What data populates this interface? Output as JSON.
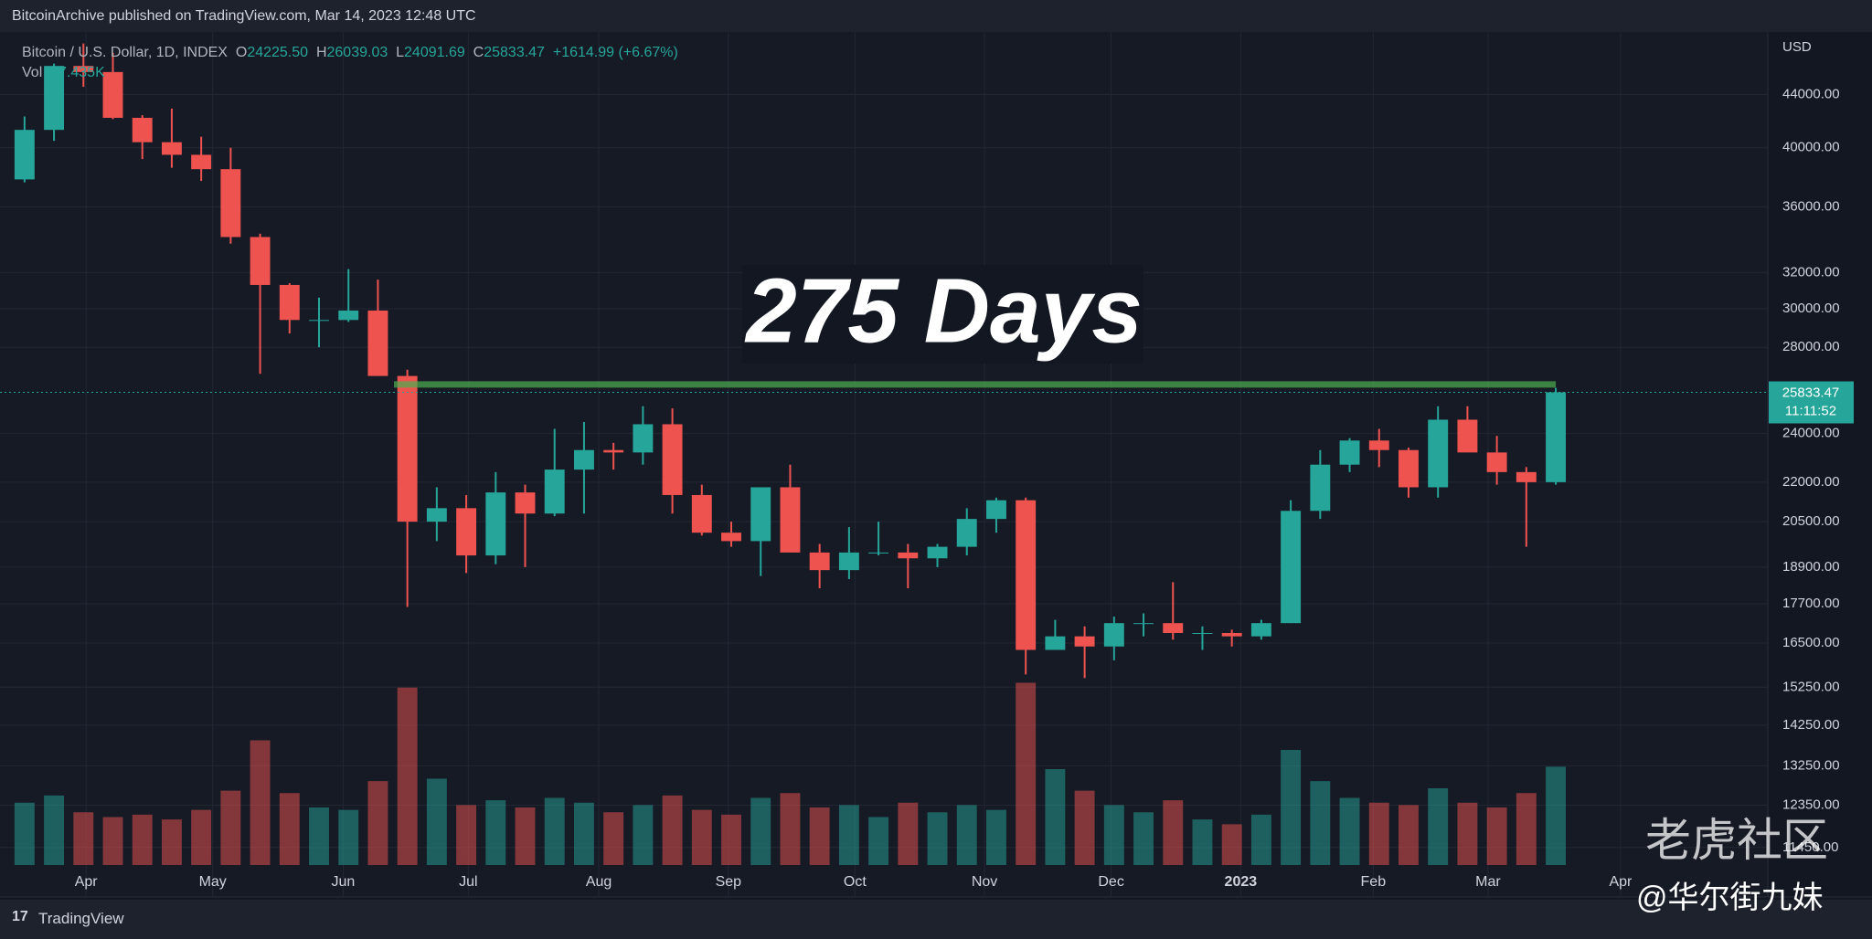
{
  "page": {
    "published": "BitcoinArchive published on TradingView.com, Mar 14, 2023 12:48 UTC",
    "brand": "TradingView",
    "watermark": "老虎社区",
    "credit": "@华尔街九妹"
  },
  "chart_data": {
    "type": "candlestick",
    "symbol": "Bitcoin / U.S. Dollar, 1D, INDEX",
    "ohlc_header": {
      "o_label": "O",
      "o": "24225.50",
      "h_label": "H",
      "h": "26039.03",
      "l_label": "L",
      "l": "24091.69",
      "c_label": "C",
      "c": "25833.47",
      "change": "+1614.99 (+6.67%)"
    },
    "volume_label": "Vol",
    "volume_header": "27.435K",
    "currency": "USD",
    "annotation": "275 Days",
    "level_line": {
      "value": 26200,
      "color": "#4caf50"
    },
    "last_price": {
      "value": 25833.47,
      "label": "25833.47",
      "countdown": "11:11:52",
      "color": "#26a69a"
    },
    "up_color": "#26a69a",
    "down_color": "#ef5350",
    "open": [
      37800,
      41300,
      46300,
      45800,
      42200,
      40400,
      39500,
      38500,
      34100,
      31300,
      29400,
      29400,
      29900,
      26600,
      20500,
      21000,
      19300,
      21600,
      20800,
      22500,
      23300,
      23200,
      24400,
      21500,
      20100,
      19800,
      21800,
      19400,
      18800,
      19400,
      19400,
      19200,
      19600,
      20600,
      21300,
      16300,
      16700,
      16400,
      17100,
      17100,
      16800,
      16800,
      16700,
      17100,
      20900,
      22700,
      23700,
      23300,
      21800,
      24600,
      23200,
      22400,
      22000
    ],
    "high": [
      42300,
      46500,
      48200,
      47400,
      42400,
      42900,
      40800,
      40000,
      34300,
      31400,
      30600,
      32200,
      31600,
      26900,
      21800,
      21500,
      22400,
      21900,
      24200,
      24500,
      23600,
      25200,
      25100,
      21900,
      20500,
      21800,
      22700,
      19700,
      20300,
      20500,
      19700,
      19700,
      21000,
      21400,
      21400,
      17200,
      17000,
      17300,
      17400,
      18400,
      17000,
      16900,
      17200,
      21300,
      23300,
      23800,
      24200,
      23400,
      25200,
      25200,
      23900,
      22600,
      26039
    ],
    "low": [
      37600,
      40500,
      44600,
      42100,
      39200,
      38600,
      37700,
      33700,
      26700,
      28700,
      28000,
      29300,
      26600,
      17600,
      19800,
      18700,
      19000,
      18900,
      20700,
      20800,
      22500,
      22700,
      20800,
      20000,
      19600,
      18600,
      19400,
      18200,
      18500,
      19300,
      18200,
      18900,
      19300,
      20100,
      15600,
      16300,
      15500,
      16000,
      16700,
      16600,
      16300,
      16400,
      16600,
      17100,
      20600,
      22400,
      22600,
      21400,
      21400,
      23400,
      21900,
      19600,
      21900
    ],
    "close": [
      41300,
      46300,
      45800,
      42200,
      40400,
      39500,
      38500,
      34100,
      31300,
      29400,
      29400,
      29900,
      26600,
      20500,
      21000,
      19300,
      21600,
      20800,
      22500,
      23300,
      23200,
      24400,
      21500,
      20100,
      19800,
      21800,
      19400,
      18800,
      19400,
      19400,
      19200,
      19600,
      20600,
      21300,
      16300,
      16700,
      16400,
      17100,
      17100,
      16800,
      16800,
      16700,
      17100,
      20900,
      22700,
      23700,
      23300,
      21800,
      24600,
      23200,
      22400,
      22000,
      25833
    ],
    "volume": [
      52,
      58,
      44,
      40,
      42,
      38,
      46,
      62,
      104,
      60,
      48,
      46,
      70,
      148,
      72,
      50,
      54,
      48,
      56,
      52,
      44,
      50,
      58,
      46,
      42,
      56,
      60,
      48,
      50,
      40,
      52,
      44,
      50,
      46,
      152,
      80,
      62,
      50,
      44,
      54,
      38,
      34,
      42,
      96,
      70,
      56,
      52,
      50,
      64,
      52,
      48,
      60,
      82
    ],
    "vlim": [
      0,
      160
    ],
    "xlim": [
      -0.43,
      59.2
    ],
    "xticks": [
      {
        "value": 2.09,
        "label": "Apr"
      },
      {
        "value": 6.39,
        "label": "May"
      },
      {
        "value": 10.82,
        "label": "Jun"
      },
      {
        "value": 15.07,
        "label": "Jul"
      },
      {
        "value": 19.5,
        "label": "Aug"
      },
      {
        "value": 23.9,
        "label": "Sep"
      },
      {
        "value": 28.2,
        "label": "Oct"
      },
      {
        "value": 32.6,
        "label": "Nov"
      },
      {
        "value": 36.9,
        "label": "Dec"
      },
      {
        "value": 41.3,
        "label": "2023"
      },
      {
        "value": 45.8,
        "label": "Feb"
      },
      {
        "value": 49.7,
        "label": "Mar"
      },
      {
        "value": 54.2,
        "label": "Apr"
      }
    ],
    "ylim": [
      10480,
      49200
    ],
    "log_scale": true,
    "grid": true,
    "yticks": [
      {
        "value": 44000,
        "label": "44000.00"
      },
      {
        "value": 40000,
        "label": "40000.00"
      },
      {
        "value": 36000,
        "label": "36000.00"
      },
      {
        "value": 32000,
        "label": "32000.00"
      },
      {
        "value": 30000,
        "label": "30000.00"
      },
      {
        "value": 28000,
        "label": "28000.00"
      },
      {
        "value": 24000,
        "label": "24000.00"
      },
      {
        "value": 22000,
        "label": "22000.00"
      },
      {
        "value": 20500,
        "label": "20500.00"
      },
      {
        "value": 18900,
        "label": "18900.00"
      },
      {
        "value": 17700,
        "label": "17700.00"
      },
      {
        "value": 16500,
        "label": "16500.00"
      },
      {
        "value": 15250,
        "label": "15250.00"
      },
      {
        "value": 14250,
        "label": "14250.00"
      },
      {
        "value": 13250,
        "label": "13250.00"
      },
      {
        "value": 12350,
        "label": "12350.00"
      },
      {
        "value": 11450,
        "label": "11450.00"
      }
    ]
  }
}
